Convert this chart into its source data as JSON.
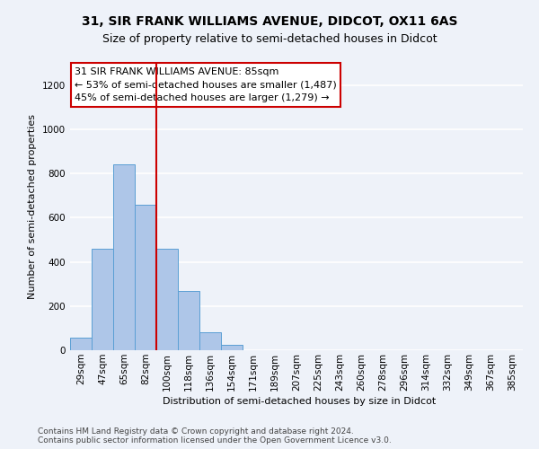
{
  "title_line1": "31, SIR FRANK WILLIAMS AVENUE, DIDCOT, OX11 6AS",
  "title_line2": "Size of property relative to semi-detached houses in Didcot",
  "xlabel": "Distribution of semi-detached houses by size in Didcot",
  "ylabel": "Number of semi-detached properties",
  "categories": [
    "29sqm",
    "47sqm",
    "65sqm",
    "82sqm",
    "100sqm",
    "118sqm",
    "136sqm",
    "154sqm",
    "171sqm",
    "189sqm",
    "207sqm",
    "225sqm",
    "243sqm",
    "260sqm",
    "278sqm",
    "296sqm",
    "314sqm",
    "332sqm",
    "349sqm",
    "367sqm",
    "385sqm"
  ],
  "values": [
    55,
    460,
    840,
    660,
    460,
    270,
    80,
    25,
    0,
    0,
    0,
    0,
    0,
    0,
    0,
    0,
    0,
    0,
    0,
    0,
    0
  ],
  "bar_color": "#aec6e8",
  "bar_edge_color": "#5a9fd4",
  "red_line_x": 3.5,
  "ylim": [
    0,
    1300
  ],
  "yticks": [
    0,
    200,
    400,
    600,
    800,
    1000,
    1200
  ],
  "annotation_text": "31 SIR FRANK WILLIAMS AVENUE: 85sqm\n← 53% of semi-detached houses are smaller (1,487)\n45% of semi-detached houses are larger (1,279) →",
  "footer_text": "Contains HM Land Registry data © Crown copyright and database right 2024.\nContains public sector information licensed under the Open Government Licence v3.0.",
  "background_color": "#eef2f9",
  "plot_bg_color": "#eef2f9",
  "grid_color": "#ffffff",
  "annotation_box_color": "#ffffff",
  "annotation_border_color": "#cc0000",
  "red_line_color": "#cc0000",
  "title1_fontsize": 10,
  "title2_fontsize": 9,
  "ylabel_fontsize": 8,
  "xlabel_fontsize": 8,
  "tick_fontsize": 7.5,
  "ann_fontsize": 8,
  "footer_fontsize": 6.5
}
